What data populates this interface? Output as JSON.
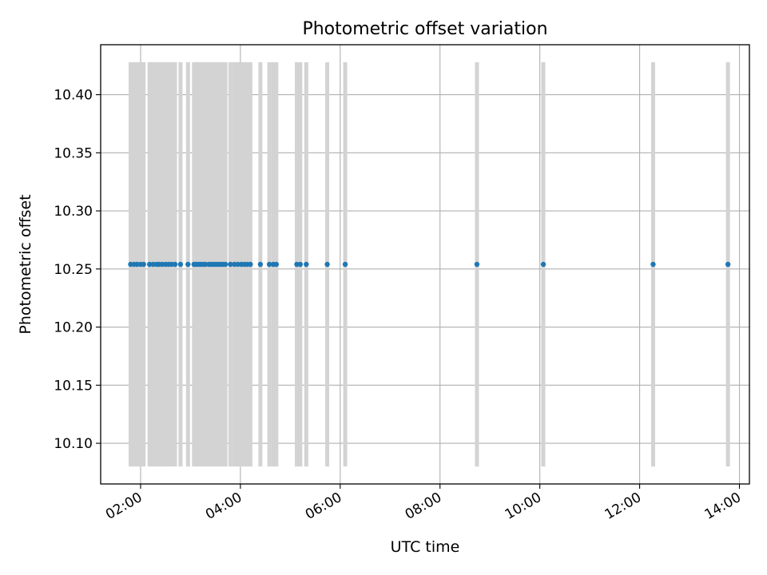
{
  "chart_data": {
    "type": "scatter",
    "title": "Photometric offset variation",
    "xlabel": "UTC time",
    "ylabel": "Photometric offset",
    "x_unit": "UTC hours",
    "xlim": [
      1.2,
      14.2
    ],
    "ylim": [
      10.065,
      10.443
    ],
    "grid": true,
    "x_ticks": [
      {
        "value": 2,
        "label": "02:00"
      },
      {
        "value": 4,
        "label": "04:00"
      },
      {
        "value": 6,
        "label": "06:00"
      },
      {
        "value": 8,
        "label": "08:00"
      },
      {
        "value": 10,
        "label": "10:00"
      },
      {
        "value": 12,
        "label": "12:00"
      },
      {
        "value": 14,
        "label": "14:00"
      }
    ],
    "y_ticks": [
      {
        "value": 10.1,
        "label": "10.10"
      },
      {
        "value": 10.15,
        "label": "10.15"
      },
      {
        "value": 10.2,
        "label": "10.20"
      },
      {
        "value": 10.25,
        "label": "10.25"
      },
      {
        "value": 10.3,
        "label": "10.30"
      },
      {
        "value": 10.35,
        "label": "10.35"
      },
      {
        "value": 10.4,
        "label": "10.40"
      }
    ],
    "marker_color": "#1f77b4",
    "errorbar_color": "#d3d3d3",
    "series": [
      {
        "x": [
          1.8,
          1.87,
          1.93,
          2.0,
          2.06,
          2.18,
          2.25,
          2.32,
          2.37,
          2.43,
          2.5,
          2.56,
          2.62,
          2.69,
          2.8,
          2.95,
          3.07,
          3.11,
          3.16,
          3.2,
          3.25,
          3.3,
          3.37,
          3.42,
          3.47,
          3.51,
          3.56,
          3.6,
          3.65,
          3.7,
          3.8,
          3.88,
          3.95,
          4.02,
          4.08,
          4.14,
          4.2,
          4.4,
          4.58,
          4.66,
          4.72,
          5.13,
          5.2,
          5.32,
          5.74,
          6.1,
          8.74,
          10.07,
          12.27,
          13.77
        ],
        "y": [
          10.254,
          10.254,
          10.254,
          10.254,
          10.254,
          10.254,
          10.254,
          10.254,
          10.254,
          10.254,
          10.254,
          10.254,
          10.254,
          10.254,
          10.254,
          10.254,
          10.254,
          10.254,
          10.254,
          10.254,
          10.254,
          10.254,
          10.254,
          10.254,
          10.254,
          10.254,
          10.254,
          10.254,
          10.254,
          10.254,
          10.254,
          10.254,
          10.254,
          10.254,
          10.254,
          10.254,
          10.254,
          10.254,
          10.254,
          10.254,
          10.254,
          10.254,
          10.254,
          10.254,
          10.254,
          10.254,
          10.254,
          10.254,
          10.254,
          10.254
        ],
        "y_err_low": [
          10.08,
          10.08,
          10.08,
          10.08,
          10.08,
          10.08,
          10.08,
          10.08,
          10.08,
          10.08,
          10.08,
          10.08,
          10.08,
          10.08,
          10.08,
          10.08,
          10.08,
          10.08,
          10.08,
          10.08,
          10.08,
          10.08,
          10.08,
          10.08,
          10.08,
          10.08,
          10.08,
          10.08,
          10.08,
          10.08,
          10.08,
          10.08,
          10.08,
          10.08,
          10.08,
          10.08,
          10.08,
          10.08,
          10.08,
          10.08,
          10.08,
          10.08,
          10.08,
          10.08,
          10.08,
          10.08,
          10.08,
          10.08,
          10.08,
          10.08
        ],
        "y_err_high": [
          10.428,
          10.428,
          10.428,
          10.428,
          10.428,
          10.428,
          10.428,
          10.428,
          10.428,
          10.428,
          10.428,
          10.428,
          10.428,
          10.428,
          10.428,
          10.428,
          10.428,
          10.428,
          10.428,
          10.428,
          10.428,
          10.428,
          10.428,
          10.428,
          10.428,
          10.428,
          10.428,
          10.428,
          10.428,
          10.428,
          10.428,
          10.428,
          10.428,
          10.428,
          10.428,
          10.428,
          10.428,
          10.428,
          10.428,
          10.428,
          10.428,
          10.428,
          10.428,
          10.428,
          10.428,
          10.428,
          10.428,
          10.428,
          10.428,
          10.428
        ]
      }
    ]
  }
}
